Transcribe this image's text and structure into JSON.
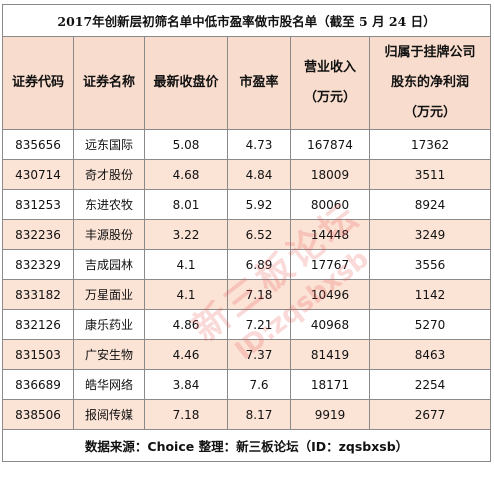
{
  "title": "2017年创新层初筛名单中低市盈率做市股名单（截至 5 月 24 日）",
  "headers": [
    [
      "证券代码"
    ],
    [
      "证券名称"
    ],
    [
      "最新收盘价"
    ],
    [
      "市盈率"
    ],
    [
      "营业收入",
      "（万元）"
    ],
    [
      "归属于挂牌公司",
      "股东的净利润",
      "（万元）"
    ]
  ],
  "rows": [
    [
      "835656",
      "远东国际",
      "5.08",
      "4.73",
      "167874",
      "17362"
    ],
    [
      "430714",
      "奇才股份",
      "4.68",
      "4.84",
      "18009",
      "3511"
    ],
    [
      "831253",
      "东进农牧",
      "8.01",
      "5.92",
      "80060",
      "8924"
    ],
    [
      "832236",
      "丰源股份",
      "3.22",
      "6.52",
      "14448",
      "3249"
    ],
    [
      "832329",
      "吉成园林",
      "4.1",
      "6.89",
      "17767",
      "3556"
    ],
    [
      "833182",
      "万星面业",
      "4.1",
      "7.18",
      "10496",
      "1142"
    ],
    [
      "832126",
      "康乐药业",
      "4.86",
      "7.21",
      "40968",
      "5270"
    ],
    [
      "831503",
      "广安生物",
      "4.46",
      "7.37",
      "81419",
      "8463"
    ],
    [
      "836689",
      "皓华网络",
      "3.84",
      "7.6",
      "18171",
      "2254"
    ],
    [
      "838506",
      "报阅传媒",
      "7.18",
      "8.17",
      "9919",
      "2677"
    ]
  ],
  "source": "数据来源：Choice 整理：新三板论坛（ID：zqsbxsb）",
  "watermark": {
    "line1": "新三板论坛",
    "line2": "ID:zqsbxsb"
  }
}
